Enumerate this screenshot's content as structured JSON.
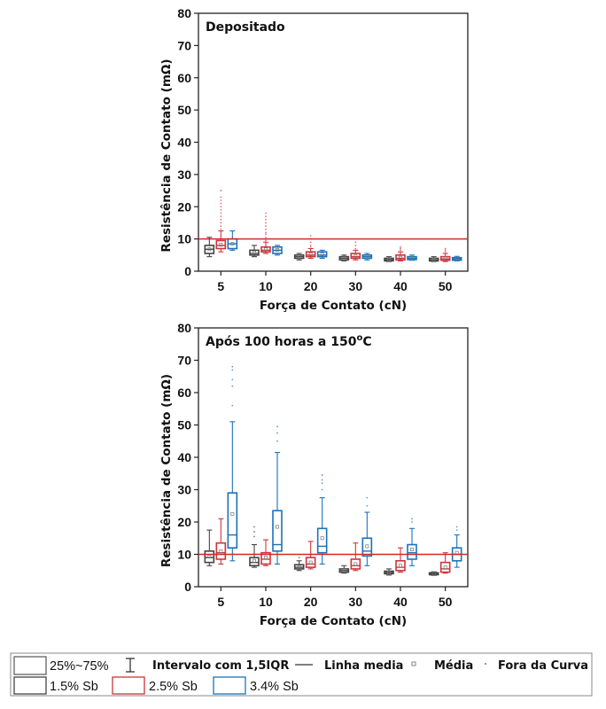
{
  "chart_data": [
    {
      "type": "box",
      "title": "Depositado",
      "xlabel": "Força de Contato (cN)",
      "ylabel": "Resistência de Contato (mΩ)",
      "ylim": [
        0,
        80
      ],
      "yticks": [
        0,
        10,
        20,
        30,
        40,
        50,
        60,
        70,
        80
      ],
      "categories": [
        "5",
        "10",
        "20",
        "30",
        "40",
        "50"
      ],
      "threshold": 10,
      "series": [
        {
          "name": "1.5% Sb",
          "color": "#444444",
          "boxes": [
            {
              "q1": 5.5,
              "med": 6.8,
              "q3": 8.0,
              "wlo": 4.5,
              "whi": 10.5,
              "mean": 6.8,
              "outliers": []
            },
            {
              "q1": 5.0,
              "med": 5.5,
              "q3": 6.5,
              "wlo": 4.5,
              "whi": 8.0,
              "mean": 5.8,
              "outliers": []
            },
            {
              "q1": 4.0,
              "med": 4.5,
              "q3": 5.0,
              "wlo": 3.5,
              "whi": 5.5,
              "mean": 4.5,
              "outliers": []
            },
            {
              "q1": 3.5,
              "med": 4.0,
              "q3": 4.5,
              "wlo": 3.2,
              "whi": 5.0,
              "mean": 4.0,
              "outliers": []
            },
            {
              "q1": 3.2,
              "med": 3.6,
              "q3": 4.0,
              "wlo": 3.0,
              "whi": 4.5,
              "mean": 3.6,
              "outliers": []
            },
            {
              "q1": 3.2,
              "med": 3.5,
              "q3": 4.0,
              "wlo": 3.0,
              "whi": 4.5,
              "mean": 3.6,
              "outliers": []
            }
          ]
        },
        {
          "name": "2.5% Sb",
          "color": "#d0343a",
          "boxes": [
            {
              "q1": 7.0,
              "med": 8.0,
              "q3": 9.5,
              "wlo": 6.0,
              "whi": 12.5,
              "mean": 8.2,
              "outliers": [
                13,
                14,
                15,
                16,
                17,
                18,
                19,
                20,
                21,
                22,
                23,
                25
              ]
            },
            {
              "q1": 6.0,
              "med": 6.5,
              "q3": 7.5,
              "wlo": 5.5,
              "whi": 9.0,
              "mean": 6.8,
              "outliers": [
                9.5,
                10.5,
                11.5,
                12,
                13,
                14,
                15,
                16,
                17,
                18
              ]
            },
            {
              "q1": 4.5,
              "med": 5.0,
              "q3": 6.0,
              "wlo": 4.0,
              "whi": 7.0,
              "mean": 5.2,
              "outliers": [
                7.5,
                8,
                9,
                10,
                11
              ]
            },
            {
              "q1": 4.0,
              "med": 4.5,
              "q3": 5.5,
              "wlo": 3.5,
              "whi": 6.5,
              "mean": 4.6,
              "outliers": [
                7,
                8,
                9
              ]
            },
            {
              "q1": 3.5,
              "med": 4.0,
              "q3": 5.0,
              "wlo": 3.2,
              "whi": 6.0,
              "mean": 4.2,
              "outliers": [
                6.5,
                7,
                7.5
              ]
            },
            {
              "q1": 3.4,
              "med": 3.8,
              "q3": 4.5,
              "wlo": 3.0,
              "whi": 5.5,
              "mean": 4.0,
              "outliers": [
                6,
                6.5,
                7
              ]
            }
          ]
        },
        {
          "name": "3.4% Sb",
          "color": "#1a73bb",
          "boxes": [
            {
              "q1": 7.0,
              "med": 8.5,
              "q3": 10.0,
              "wlo": 6.5,
              "whi": 12.5,
              "mean": 8.5,
              "outliers": []
            },
            {
              "q1": 5.5,
              "med": 6.5,
              "q3": 7.5,
              "wlo": 5.0,
              "whi": 8.0,
              "mean": 6.6,
              "outliers": []
            },
            {
              "q1": 4.5,
              "med": 5.0,
              "q3": 6.0,
              "wlo": 4.0,
              "whi": 6.5,
              "mean": 5.2,
              "outliers": []
            },
            {
              "q1": 4.0,
              "med": 4.5,
              "q3": 5.0,
              "wlo": 3.5,
              "whi": 5.5,
              "mean": 4.5,
              "outliers": []
            },
            {
              "q1": 3.6,
              "med": 4.0,
              "q3": 4.5,
              "wlo": 3.4,
              "whi": 5.0,
              "mean": 4.0,
              "outliers": []
            },
            {
              "q1": 3.4,
              "med": 3.8,
              "q3": 4.2,
              "wlo": 3.2,
              "whi": 4.6,
              "mean": 3.8,
              "outliers": []
            }
          ]
        }
      ]
    },
    {
      "type": "box",
      "title": "Após 100 horas a 150",
      "title_superscript": "o",
      "title_suffix": "C",
      "xlabel": "Força de Contato (cN)",
      "ylabel": "Resistência de Contato (mΩ)",
      "ylim": [
        0,
        80
      ],
      "yticks": [
        0,
        10,
        20,
        30,
        40,
        50,
        60,
        70,
        80
      ],
      "categories": [
        "5",
        "10",
        "20",
        "30",
        "40",
        "50"
      ],
      "threshold": 10,
      "series": [
        {
          "name": "1.5% Sb",
          "color": "#444444",
          "boxes": [
            {
              "q1": 7.5,
              "med": 9.0,
              "q3": 11.0,
              "wlo": 6.5,
              "whi": 17.5,
              "mean": 9.3,
              "outliers": []
            },
            {
              "q1": 6.5,
              "med": 7.5,
              "q3": 9.0,
              "wlo": 6.0,
              "whi": 13.0,
              "mean": 8.0,
              "outliers": [
                15.5,
                17,
                18.5
              ]
            },
            {
              "q1": 5.5,
              "med": 6.0,
              "q3": 6.8,
              "wlo": 5.0,
              "whi": 8.0,
              "mean": 6.1,
              "outliers": [
                9
              ]
            },
            {
              "q1": 4.5,
              "med": 5.0,
              "q3": 5.5,
              "wlo": 4.2,
              "whi": 6.5,
              "mean": 5.0,
              "outliers": []
            },
            {
              "q1": 4.0,
              "med": 4.4,
              "q3": 4.8,
              "wlo": 3.6,
              "whi": 5.5,
              "mean": 4.4,
              "outliers": []
            },
            {
              "q1": 3.7,
              "med": 4.0,
              "q3": 4.3,
              "wlo": 3.5,
              "whi": 4.6,
              "mean": 4.0,
              "outliers": []
            }
          ]
        },
        {
          "name": "2.5% Sb",
          "color": "#d0343a",
          "boxes": [
            {
              "q1": 8.5,
              "med": 10.5,
              "q3": 13.5,
              "wlo": 7.0,
              "whi": 21.0,
              "mean": 11.0,
              "outliers": []
            },
            {
              "q1": 7.0,
              "med": 8.5,
              "q3": 10.5,
              "wlo": 6.5,
              "whi": 14.5,
              "mean": 9.0,
              "outliers": []
            },
            {
              "q1": 6.0,
              "med": 7.0,
              "q3": 9.0,
              "wlo": 5.5,
              "whi": 14.0,
              "mean": 7.5,
              "outliers": []
            },
            {
              "q1": 5.5,
              "med": 6.5,
              "q3": 8.5,
              "wlo": 5.0,
              "whi": 13.5,
              "mean": 7.0,
              "outliers": []
            },
            {
              "q1": 5.0,
              "med": 6.0,
              "q3": 8.0,
              "wlo": 4.5,
              "whi": 12.0,
              "mean": 6.5,
              "outliers": []
            },
            {
              "q1": 4.5,
              "med": 5.5,
              "q3": 7.5,
              "wlo": 4.2,
              "whi": 10.5,
              "mean": 6.0,
              "outliers": []
            }
          ]
        },
        {
          "name": "3.4% Sb",
          "color": "#1a73bb",
          "boxes": [
            {
              "q1": 12.0,
              "med": 16.0,
              "q3": 29.0,
              "wlo": 8.0,
              "whi": 51.0,
              "mean": 22.5,
              "outliers": [
                56,
                62,
                64,
                67,
                68
              ]
            },
            {
              "q1": 11.0,
              "med": 13.0,
              "q3": 23.5,
              "wlo": 7.0,
              "whi": 41.5,
              "mean": 18.5,
              "outliers": [
                45,
                47.5,
                49.5
              ]
            },
            {
              "q1": 10.5,
              "med": 12.5,
              "q3": 18.0,
              "wlo": 7.0,
              "whi": 27.5,
              "mean": 15.0,
              "outliers": [
                30,
                32,
                33,
                34.5
              ]
            },
            {
              "q1": 9.5,
              "med": 11.0,
              "q3": 15.0,
              "wlo": 6.5,
              "whi": 23.0,
              "mean": 12.5,
              "outliers": [
                25,
                27.5
              ]
            },
            {
              "q1": 8.5,
              "med": 10.5,
              "q3": 13.0,
              "wlo": 6.5,
              "whi": 18.0,
              "mean": 11.5,
              "outliers": [
                20,
                21
              ]
            },
            {
              "q1": 8.0,
              "med": 10.0,
              "q3": 12.0,
              "wlo": 6.0,
              "whi": 16.0,
              "mean": 10.5,
              "outliers": [
                17.5,
                18.5
              ]
            }
          ]
        }
      ]
    }
  ],
  "legend": {
    "box_label": "25%~75%",
    "whisker_label": "Intervalo com 1,5IQR",
    "line_label": "Linha media",
    "mean_label": "Média",
    "outlier_label": "Fora da Curva",
    "series_labels": [
      "1.5% Sb",
      "2.5% Sb",
      "3.4% Sb"
    ]
  }
}
